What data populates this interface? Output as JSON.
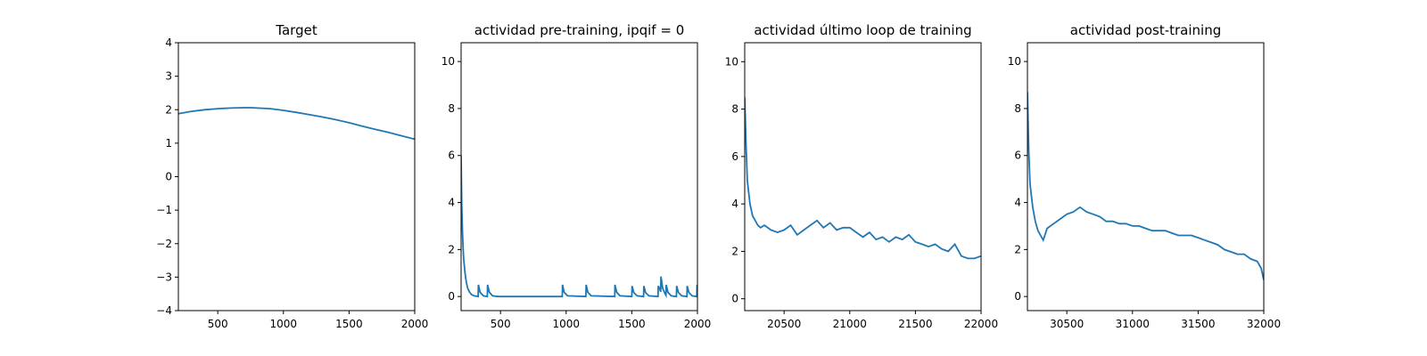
{
  "figure": {
    "background": "#ffffff",
    "line_color": "#1f77b4"
  },
  "chart_data": [
    {
      "type": "line",
      "title": "Target",
      "xlim": [
        200,
        2000
      ],
      "ylim": [
        -4,
        4
      ],
      "xticks": [
        500,
        1000,
        1500,
        2000
      ],
      "yticks": [
        -4,
        -3,
        -2,
        -1,
        0,
        1,
        2,
        3,
        4
      ],
      "series": [
        {
          "x": [
            200,
            300,
            400,
            500,
            600,
            700,
            750,
            800,
            900,
            1000,
            1100,
            1200,
            1300,
            1400,
            1500,
            1600,
            1700,
            1800,
            1900,
            2000
          ],
          "y": [
            1.88,
            1.95,
            2.0,
            2.03,
            2.05,
            2.06,
            2.06,
            2.05,
            2.03,
            1.98,
            1.92,
            1.85,
            1.78,
            1.7,
            1.61,
            1.51,
            1.41,
            1.32,
            1.22,
            1.12
          ]
        }
      ]
    },
    {
      "type": "line",
      "title": "actividad pre-training, ipqif = 0",
      "xlim": [
        200,
        2000
      ],
      "ylim": [
        -0.6,
        10.8
      ],
      "xticks": [
        500,
        1000,
        1500,
        2000
      ],
      "yticks": [
        0,
        2,
        4,
        6,
        8,
        10
      ],
      "series": [
        {
          "x": [
            200,
            205,
            210,
            215,
            220,
            230,
            240,
            250,
            265,
            280,
            300,
            320,
            330,
            332,
            345,
            370,
            400,
            402,
            415,
            440,
            480,
            600,
            800,
            970,
            972,
            985,
            1010,
            1150,
            1152,
            1165,
            1190,
            1370,
            1372,
            1385,
            1410,
            1500,
            1502,
            1515,
            1540,
            1590,
            1592,
            1605,
            1630,
            1700,
            1702,
            1715,
            1720,
            1722,
            1735,
            1755,
            1760,
            1762,
            1775,
            1800,
            1840,
            1842,
            1855,
            1880,
            1920,
            1922,
            1935,
            1960,
            1995,
            1997,
            2000
          ],
          "y": [
            6.0,
            3.9,
            2.8,
            2.1,
            1.6,
            1.0,
            0.6,
            0.35,
            0.18,
            0.08,
            0.03,
            0.01,
            0.0,
            0.5,
            0.18,
            0.03,
            0.0,
            0.5,
            0.18,
            0.03,
            0.0,
            0.0,
            0.0,
            0.0,
            0.5,
            0.18,
            0.03,
            0.0,
            0.5,
            0.18,
            0.03,
            0.0,
            0.5,
            0.18,
            0.03,
            0.0,
            0.45,
            0.17,
            0.03,
            0.0,
            0.45,
            0.17,
            0.03,
            0.0,
            0.45,
            0.3,
            0.2,
            0.85,
            0.35,
            0.1,
            0.05,
            0.5,
            0.18,
            0.03,
            0.0,
            0.45,
            0.17,
            0.03,
            0.0,
            0.45,
            0.17,
            0.03,
            0.0,
            0.5,
            0.4
          ]
        }
      ]
    },
    {
      "type": "line",
      "title": "actividad último loop de training",
      "xlim": [
        20200,
        22000
      ],
      "ylim": [
        -0.5,
        10.8
      ],
      "xticks": [
        20500,
        21000,
        21500,
        22000
      ],
      "yticks": [
        0,
        2,
        4,
        6,
        8,
        10
      ],
      "series": [
        {
          "x": [
            20200,
            20210,
            20220,
            20240,
            20260,
            20280,
            20300,
            20320,
            20350,
            20400,
            20450,
            20500,
            20550,
            20600,
            20650,
            20700,
            20750,
            20800,
            20850,
            20900,
            20950,
            21000,
            21050,
            21100,
            21150,
            21200,
            21250,
            21300,
            21350,
            21400,
            21450,
            21500,
            21550,
            21600,
            21650,
            21700,
            21750,
            21800,
            21850,
            21900,
            21950,
            22000
          ],
          "y": [
            8.5,
            6.5,
            5.0,
            4.0,
            3.5,
            3.3,
            3.1,
            3.0,
            3.1,
            2.9,
            2.8,
            2.9,
            3.1,
            2.7,
            2.9,
            3.1,
            3.3,
            3.0,
            3.2,
            2.9,
            3.0,
            3.0,
            2.8,
            2.6,
            2.8,
            2.5,
            2.6,
            2.4,
            2.6,
            2.5,
            2.7,
            2.4,
            2.3,
            2.2,
            2.3,
            2.1,
            2.0,
            2.3,
            1.8,
            1.7,
            1.7,
            1.8
          ]
        }
      ]
    },
    {
      "type": "line",
      "title": "actividad post-training",
      "xlim": [
        30200,
        32000
      ],
      "ylim": [
        -0.6,
        10.8
      ],
      "xticks": [
        30500,
        31000,
        31500,
        32000
      ],
      "yticks": [
        0,
        2,
        4,
        6,
        8,
        10
      ],
      "series": [
        {
          "x": [
            30200,
            30210,
            30220,
            30240,
            30260,
            30280,
            30300,
            30320,
            30350,
            30400,
            30450,
            30500,
            30550,
            30600,
            30650,
            30700,
            30750,
            30800,
            30850,
            30900,
            30950,
            31000,
            31050,
            31100,
            31150,
            31200,
            31250,
            31300,
            31350,
            31400,
            31450,
            31500,
            31550,
            31600,
            31650,
            31700,
            31750,
            31800,
            31850,
            31900,
            31950,
            31980,
            32000
          ],
          "y": [
            8.7,
            6.2,
            4.8,
            3.8,
            3.2,
            2.8,
            2.6,
            2.4,
            2.9,
            3.1,
            3.3,
            3.5,
            3.6,
            3.8,
            3.6,
            3.5,
            3.4,
            3.2,
            3.2,
            3.1,
            3.1,
            3.0,
            3.0,
            2.9,
            2.8,
            2.8,
            2.8,
            2.7,
            2.6,
            2.6,
            2.6,
            2.5,
            2.4,
            2.3,
            2.2,
            2.0,
            1.9,
            1.8,
            1.8,
            1.6,
            1.5,
            1.2,
            0.7
          ]
        }
      ]
    }
  ]
}
